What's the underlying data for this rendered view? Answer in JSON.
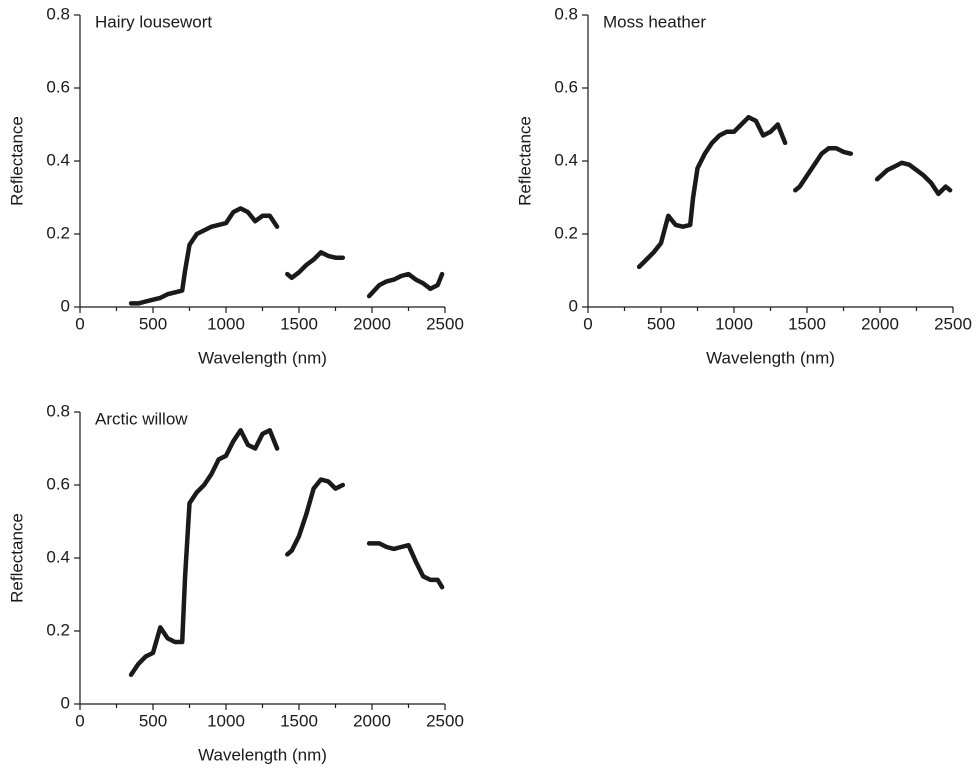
{
  "chart_data": [
    {
      "type": "line",
      "title": "Hairy lousewort",
      "xlabel": "Wavelength (nm)",
      "ylabel": "Reflectance",
      "color": "#1a1a1a",
      "x": [
        350,
        400,
        450,
        500,
        550,
        600,
        650,
        700,
        720,
        750,
        800,
        850,
        900,
        950,
        1000,
        1050,
        1100,
        1150,
        1200,
        1250,
        1300,
        1350,
        1390,
        1420,
        1450,
        1500,
        1550,
        1600,
        1650,
        1700,
        1750,
        1800,
        1900,
        1980,
        2050,
        2100,
        2150,
        2200,
        2250,
        2300,
        2350,
        2400,
        2450,
        2480
      ],
      "values": [
        0.01,
        0.01,
        0.015,
        0.02,
        0.025,
        0.035,
        0.04,
        0.045,
        0.1,
        0.17,
        0.2,
        0.21,
        0.22,
        0.225,
        0.23,
        0.26,
        0.27,
        0.26,
        0.235,
        0.25,
        0.25,
        0.22,
        null,
        0.09,
        0.08,
        0.095,
        0.115,
        0.13,
        0.15,
        0.14,
        0.135,
        0.135,
        null,
        0.03,
        0.06,
        0.07,
        0.075,
        0.085,
        0.09,
        0.075,
        0.065,
        0.05,
        0.06,
        0.09
      ],
      "xlim": [
        0,
        2500
      ],
      "xticks": [
        0,
        500,
        1000,
        1500,
        2000,
        2500
      ],
      "xminorticks": [
        250,
        750,
        1250,
        1750,
        2250
      ],
      "ylim": [
        0,
        0.8
      ],
      "yticks": [
        0,
        0.2,
        0.4,
        0.6,
        0.8
      ]
    },
    {
      "type": "line",
      "title": "Moss heather",
      "xlabel": "Wavelength (nm)",
      "ylabel": "Reflectance",
      "color": "#1a1a1a",
      "x": [
        350,
        400,
        450,
        500,
        550,
        600,
        650,
        700,
        720,
        750,
        800,
        850,
        900,
        950,
        1000,
        1050,
        1100,
        1150,
        1200,
        1250,
        1300,
        1350,
        1390,
        1420,
        1450,
        1500,
        1550,
        1600,
        1650,
        1700,
        1750,
        1800,
        1900,
        1980,
        2050,
        2100,
        2150,
        2200,
        2250,
        2300,
        2350,
        2400,
        2450,
        2480
      ],
      "values": [
        0.11,
        0.13,
        0.15,
        0.175,
        0.25,
        0.225,
        0.22,
        0.225,
        0.3,
        0.38,
        0.42,
        0.45,
        0.47,
        0.48,
        0.48,
        0.5,
        0.52,
        0.51,
        0.47,
        0.48,
        0.5,
        0.45,
        null,
        0.32,
        0.33,
        0.36,
        0.39,
        0.42,
        0.435,
        0.435,
        0.425,
        0.42,
        null,
        0.35,
        0.375,
        0.385,
        0.395,
        0.39,
        0.375,
        0.36,
        0.34,
        0.31,
        0.33,
        0.32
      ],
      "xlim": [
        0,
        2500
      ],
      "xticks": [
        0,
        500,
        1000,
        1500,
        2000,
        2500
      ],
      "xminorticks": [
        250,
        750,
        1250,
        1750,
        2250
      ],
      "ylim": [
        0,
        0.8
      ],
      "yticks": [
        0,
        0.2,
        0.4,
        0.6,
        0.8
      ]
    },
    {
      "type": "line",
      "title": "Arctic willow",
      "xlabel": "Wavelength (nm)",
      "ylabel": "Reflectance",
      "color": "#1a1a1a",
      "x": [
        350,
        400,
        450,
        500,
        550,
        600,
        650,
        700,
        720,
        750,
        800,
        850,
        900,
        950,
        1000,
        1050,
        1100,
        1150,
        1200,
        1250,
        1300,
        1350,
        1390,
        1420,
        1450,
        1500,
        1550,
        1600,
        1650,
        1700,
        1750,
        1800,
        1900,
        1980,
        2050,
        2100,
        2150,
        2200,
        2250,
        2300,
        2350,
        2400,
        2450,
        2480
      ],
      "values": [
        0.08,
        0.11,
        0.13,
        0.14,
        0.21,
        0.18,
        0.17,
        0.17,
        0.35,
        0.55,
        0.58,
        0.6,
        0.63,
        0.67,
        0.68,
        0.72,
        0.75,
        0.71,
        0.7,
        0.74,
        0.75,
        0.7,
        null,
        0.41,
        0.42,
        0.46,
        0.52,
        0.59,
        0.615,
        0.61,
        0.59,
        0.6,
        null,
        0.44,
        0.44,
        0.43,
        0.425,
        0.43,
        0.435,
        0.39,
        0.35,
        0.34,
        0.34,
        0.32
      ],
      "xlim": [
        0,
        2500
      ],
      "xticks": [
        0,
        500,
        1000,
        1500,
        2000,
        2500
      ],
      "xminorticks": [
        250,
        750,
        1250,
        1750,
        2250
      ],
      "ylim": [
        0,
        0.8
      ],
      "yticks": [
        0,
        0.2,
        0.4,
        0.6,
        0.8
      ]
    }
  ]
}
